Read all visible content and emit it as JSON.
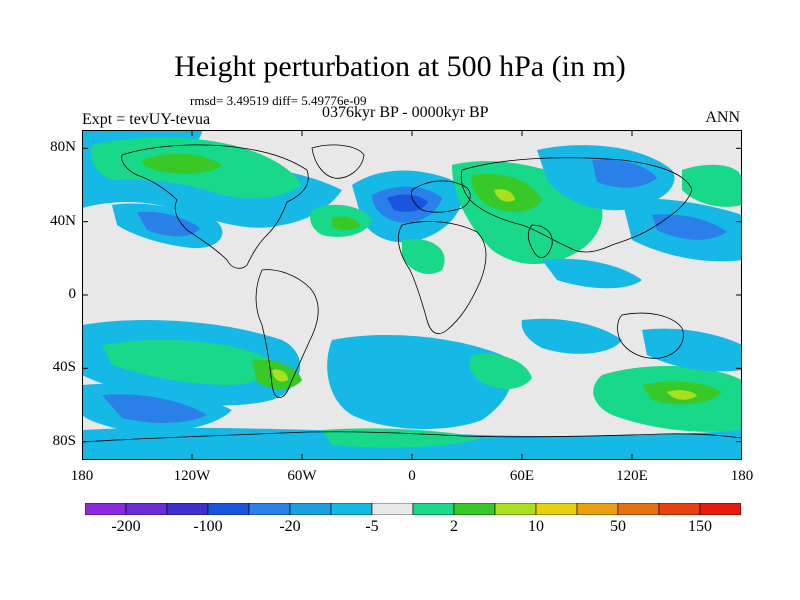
{
  "title": "Height perturbation at 500 hPa (in m)",
  "stats": "rmsd= 3.49519 diff= 5.49776e-09",
  "expt": "Expt = tevUY-tevua",
  "period": "0376kyr BP - 0000kyr BP",
  "season": "ANN",
  "map_data": {
    "projection": "cylindrical-equidistant",
    "lon_range": [
      -180,
      180
    ],
    "lat_range": [
      -90,
      90
    ],
    "lat_ticks": [
      "80N",
      "40N",
      "0",
      "40S",
      "80S"
    ],
    "lon_ticks": [
      "180",
      "120W",
      "60W",
      "0",
      "60E",
      "120E",
      "180"
    ],
    "background_color": "#e8e8e8",
    "coastline_color": "#000000"
  },
  "colorbar": {
    "labels": [
      "-200",
      "-100",
      "-20",
      "-5",
      "2",
      "10",
      "50",
      "150"
    ],
    "colors": [
      "#8a2be2",
      "#6a2bd8",
      "#4030d0",
      "#1a55e0",
      "#2a7fe8",
      "#1a9fe0",
      "#16b8e6",
      "#e8e8e8",
      "#18d88a",
      "#38c828",
      "#a8e020",
      "#e8d010",
      "#e8a010",
      "#e87010",
      "#e84010",
      "#e81a10"
    ]
  }
}
